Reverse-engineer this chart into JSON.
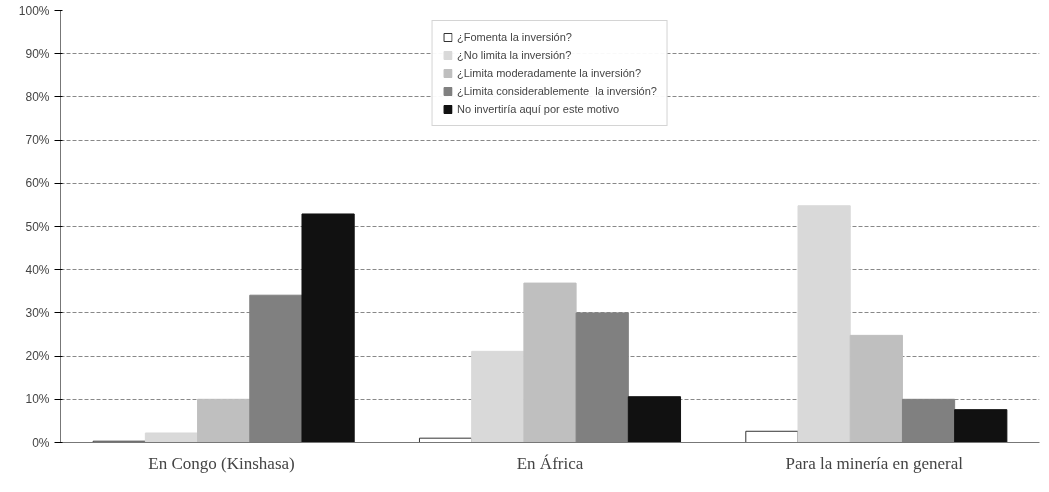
{
  "chart_data": {
    "type": "bar",
    "categories": [
      "En Congo  (Kinshasa)",
      "En África",
      "Para  la minería en general"
    ],
    "series": [
      {
        "name": "¿Fomenta la inversión?",
        "color": "#ffffff",
        "values": [
          0.3,
          1.0,
          2.6
        ]
      },
      {
        "name": "¿No limita la inversión?",
        "color": "#d9d9d9",
        "values": [
          2.2,
          21.1,
          54.8
        ]
      },
      {
        "name": "¿Limita moderadamente la inversión?",
        "color": "#bfbfbf",
        "values": [
          10,
          36.9,
          24.8
        ]
      },
      {
        "name": "¿Limita considerablemente  la inversión?",
        "color": "#808080",
        "values": [
          34.1,
          30,
          10
        ]
      },
      {
        "name": "No invertiría aquí por este motivo",
        "color": "#111111",
        "values": [
          52.9,
          10.6,
          7.6
        ]
      }
    ],
    "ylim": [
      0,
      100
    ],
    "yticks": [
      {
        "value": 0,
        "label": "0%"
      },
      {
        "value": 10,
        "label": "10%"
      },
      {
        "value": 20,
        "label": "20%"
      },
      {
        "value": 30,
        "label": "30%"
      },
      {
        "value": 40,
        "label": "40%"
      },
      {
        "value": 50,
        "label": "50%"
      },
      {
        "value": 60,
        "label": "60%"
      },
      {
        "value": 70,
        "label": "70%"
      },
      {
        "value": 80,
        "label": "80%"
      },
      {
        "value": 90,
        "label": "90%"
      },
      {
        "value": 100,
        "label": "100%"
      }
    ],
    "grid": "y",
    "legend": "top"
  }
}
